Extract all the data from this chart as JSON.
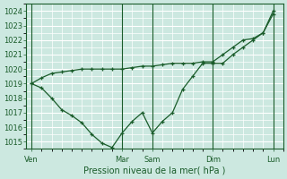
{
  "background_color": "#cce8e0",
  "grid_color": "#ffffff",
  "line_color": "#1a5c2a",
  "xlabel": "Pression niveau de la mer( hPa )",
  "ylim": [
    1014.5,
    1024.5
  ],
  "yticks": [
    1015,
    1016,
    1017,
    1018,
    1019,
    1020,
    1021,
    1022,
    1023,
    1024
  ],
  "day_labels": [
    "Ven",
    "Mar",
    "Sam",
    "Dim",
    "Lun"
  ],
  "day_positions": [
    0,
    9,
    12,
    18,
    24
  ],
  "xlim": [
    -0.5,
    25
  ],
  "series1_x": [
    0,
    1,
    2,
    3,
    4,
    5,
    6,
    7,
    8,
    9,
    10,
    11,
    12,
    13,
    14,
    15,
    16,
    17,
    18,
    19,
    20,
    21,
    22,
    23,
    24
  ],
  "series1_y": [
    1019.0,
    1019.4,
    1019.7,
    1019.8,
    1019.9,
    1020.0,
    1020.0,
    1020.0,
    1020.0,
    1020.0,
    1020.1,
    1020.2,
    1020.2,
    1020.3,
    1020.4,
    1020.4,
    1020.4,
    1020.5,
    1020.5,
    1021.0,
    1021.5,
    1022.0,
    1022.1,
    1022.5,
    1023.8
  ],
  "series2_x": [
    0,
    1,
    2,
    3,
    4,
    5,
    6,
    7,
    8,
    9,
    10,
    11,
    12,
    13,
    14,
    15,
    16,
    17,
    18,
    19,
    20,
    21,
    22,
    23,
    24
  ],
  "series2_y": [
    1019.0,
    1018.7,
    1018.0,
    1017.2,
    1016.8,
    1016.3,
    1015.5,
    1014.9,
    1014.6,
    1015.6,
    1016.4,
    1017.0,
    1015.6,
    1016.4,
    1017.0,
    1018.6,
    1019.5,
    1020.4,
    1020.4,
    1020.4,
    1021.0,
    1021.5,
    1022.0,
    1022.5,
    1024.0
  ]
}
